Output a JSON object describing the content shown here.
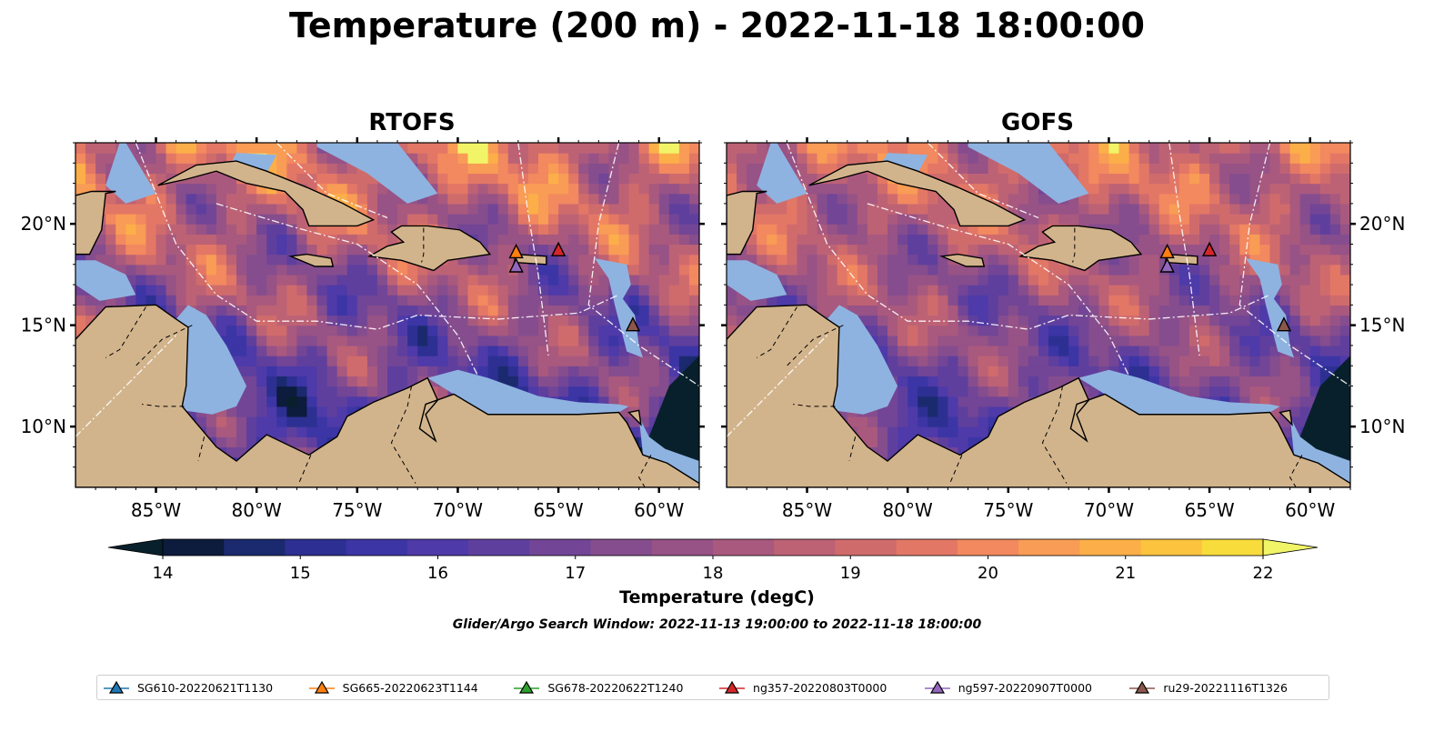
{
  "figure": {
    "title": "Temperature (200 m) - 2022-11-18 18:00:00",
    "window_note": "Glider/Argo Search Window: 2022-11-13 19:00:00 to 2022-11-18 18:00:00",
    "colorbar_label": "Temperature (degC)"
  },
  "chart_data": [
    {
      "type": "heatmap",
      "title": "RTOFS",
      "x_ticks": [
        "85°W",
        "80°W",
        "75°W",
        "70°W",
        "65°W",
        "60°W"
      ],
      "y_ticks": [
        "20°N",
        "15°N",
        "10°N"
      ],
      "xlim": [
        -89,
        -58
      ],
      "ylim": [
        7,
        24
      ],
      "markers": [
        {
          "name": "SG665-20220623T1144",
          "lon": -67.1,
          "lat": 18.6,
          "color": "#ff7f0e"
        },
        {
          "name": "ng357-20220803T0000",
          "lon": -65.0,
          "lat": 18.7,
          "color": "#d62728"
        },
        {
          "name": "ng597-20220907T0000",
          "lon": -67.1,
          "lat": 17.9,
          "color": "#9467bd"
        },
        {
          "name": "ru29-20221116T1326",
          "lon": -61.3,
          "lat": 15.0,
          "color": "#8c564b"
        }
      ]
    },
    {
      "type": "heatmap",
      "title": "GOFS",
      "x_ticks": [
        "85°W",
        "80°W",
        "75°W",
        "70°W",
        "65°W",
        "60°W"
      ],
      "y_ticks": [
        "20°N",
        "15°N",
        "10°N"
      ],
      "xlim": [
        -89,
        -58
      ],
      "ylim": [
        7,
        24
      ],
      "markers": [
        {
          "name": "SG665-20220623T1144",
          "lon": -67.1,
          "lat": 18.6,
          "color": "#ff7f0e"
        },
        {
          "name": "ng357-20220803T0000",
          "lon": -65.0,
          "lat": 18.7,
          "color": "#d62728"
        },
        {
          "name": "ng597-20220907T0000",
          "lon": -67.1,
          "lat": 17.9,
          "color": "#9467bd"
        },
        {
          "name": "ru29-20221116T1326",
          "lon": -61.3,
          "lat": 15.0,
          "color": "#8c564b"
        }
      ]
    }
  ],
  "colorbar": {
    "min": 14,
    "max": 22,
    "step": 0.5,
    "tick_labels": [
      "14",
      "15",
      "16",
      "17",
      "18",
      "19",
      "20",
      "21",
      "22"
    ],
    "colors": [
      "#0d1b3d",
      "#1b2a6e",
      "#2d3092",
      "#3c35a5",
      "#4e3aa8",
      "#5f3f9e",
      "#724596",
      "#854d8e",
      "#975286",
      "#a9597e",
      "#bd6275",
      "#d06b6c",
      "#e37766",
      "#f2895f",
      "#f99c55",
      "#fcaf48",
      "#fcc43e",
      "#f7dc3c"
    ],
    "under_color": "#08202c",
    "over_color": "#f2f468"
  },
  "legend": [
    {
      "label": "SG610-20220621T1130",
      "color": "#1f77b4"
    },
    {
      "label": "SG665-20220623T1144",
      "color": "#ff7f0e"
    },
    {
      "label": "SG678-20220622T1240",
      "color": "#2ca02c"
    },
    {
      "label": "ng357-20220803T0000",
      "color": "#d62728"
    },
    {
      "label": "ng597-20220907T0000",
      "color": "#9467bd"
    },
    {
      "label": "ru29-20221116T1326",
      "color": "#8c564b"
    }
  ],
  "map_colors": {
    "land": "#d2b48c",
    "shelf": "#8fb3e0",
    "deep_cold": "#08202c"
  }
}
